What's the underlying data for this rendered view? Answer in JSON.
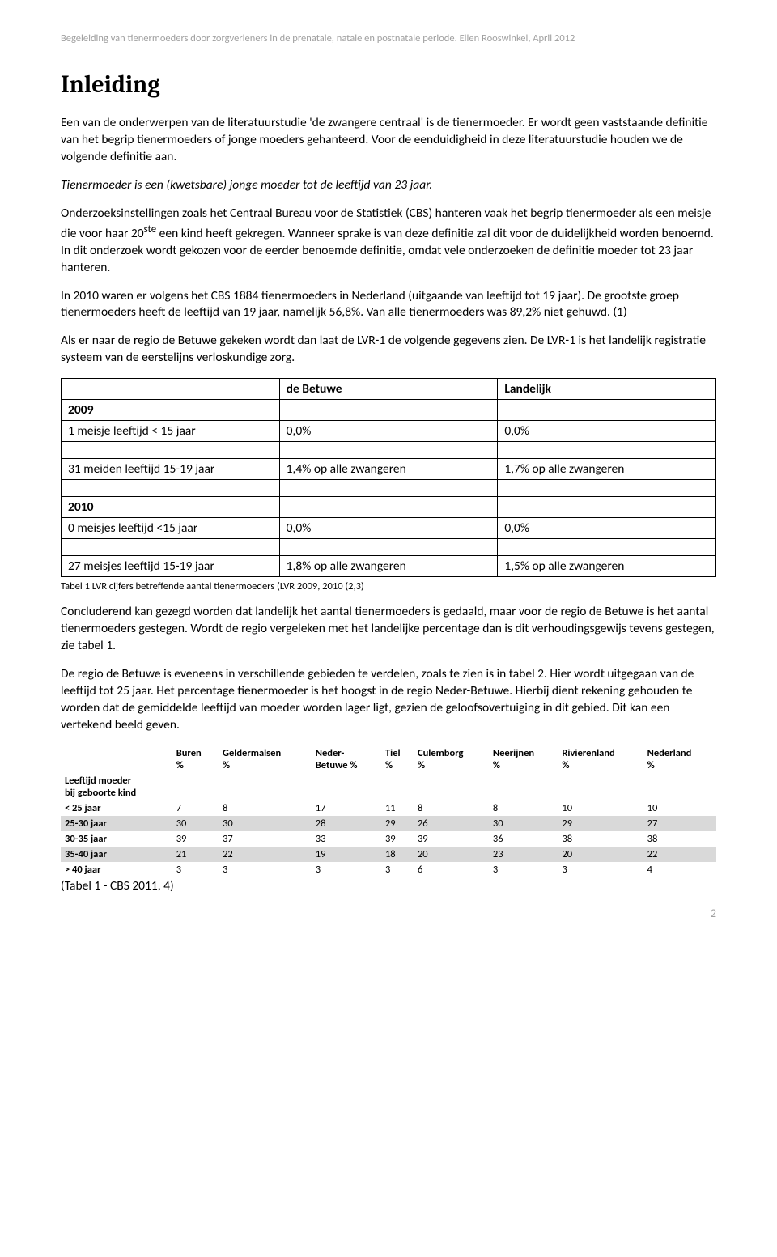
{
  "header": "Begeleiding van tienermoeders door zorgverleners in de prenatale, natale en postnatale periode. Ellen Rooswinkel, April 2012",
  "title": "Inleiding",
  "p1": "Een van de onderwerpen van de literatuurstudie 'de zwangere centraal' is de tienermoeder. Er wordt geen vaststaande definitie van het begrip tienermoeders of jonge moeders gehanteerd. Voor de eenduidigheid in deze literatuurstudie houden we de volgende definitie aan.",
  "p2": "Tienermoeder is een (kwetsbare) jonge moeder tot de leeftijd van 23 jaar.",
  "p3a": "Onderzoeksinstellingen zoals het Centraal Bureau voor de Statistiek (CBS) hanteren vaak het begrip tienermoeder als een meisje die voor haar 20",
  "p3sup": "ste",
  "p3b": " een kind heeft gekregen. Wanneer sprake is van deze definitie zal dit voor de duidelijkheid worden benoemd. In dit onderzoek wordt gekozen voor de eerder benoemde definitie, omdat vele onderzoeken de definitie moeder tot 23 jaar hanteren.",
  "p4": "In 2010 waren er volgens het CBS 1884 tienermoeders in Nederland (uitgaande van leeftijd tot 19 jaar). De grootste groep tienermoeders heeft de leeftijd van 19 jaar, namelijk 56,8%. Van alle tienermoeders was 89,2% niet gehuwd. (1)",
  "p5": "Als er naar de regio de Betuwe gekeken wordt dan laat de LVR-1 de volgende gegevens zien. De LVR-1 is het landelijk registratie systeem van de eerstelijns verloskundige zorg.",
  "table1": {
    "head_col2": "de Betuwe",
    "head_col3": "Landelijk",
    "y2009": "2009",
    "r1c1": "1 meisje leeftijd < 15 jaar",
    "r1c2": "0,0%",
    "r1c3": "0,0%",
    "r2c1": "31 meiden leeftijd 15-19 jaar",
    "r2c2": "1,4% op alle zwangeren",
    "r2c3": "1,7% op alle zwangeren",
    "y2010": "2010",
    "r3c1": "0 meisjes leeftijd <15 jaar",
    "r3c2": "0,0%",
    "r3c3": "0,0%",
    "r4c1": "27 meisjes leeftijd 15-19 jaar",
    "r4c2": "1,8% op alle zwangeren",
    "r4c3": "1,5% op alle zwangeren"
  },
  "table1_caption": "Tabel 1 LVR cijfers betreffende aantal tienermoeders (LVR 2009, 2010 (2,3)",
  "p6": "Concluderend kan gezegd worden dat landelijk het aantal tienermoeders is gedaald, maar voor de regio de Betuwe is het aantal tienermoeders gestegen. Wordt de regio vergeleken met het landelijke percentage dan is dit verhoudingsgewijs tevens gestegen, zie tabel 1.",
  "p7": "De regio de Betuwe is eveneens in verschillende gebieden te verdelen, zoals te zien is in tabel 2. Hier wordt uitgegaan van de leeftijd tot 25 jaar. Het percentage tienermoeder is het hoogst in de regio Neder-Betuwe. Hierbij dient rekening gehouden te worden dat de gemiddelde leeftijd van moeder worden lager ligt, gezien de geloofsovertuiging in dit gebied. Dit kan een vertekend beeld geven.",
  "table2": {
    "head": {
      "c0": "",
      "c1a": "Buren",
      "c1b": "%",
      "c2a": "Geldermalsen",
      "c2b": "%",
      "c3a": "Neder-",
      "c3b": "Betuwe %",
      "c4a": "Tiel",
      "c4b": "%",
      "c5a": "Culemborg",
      "c5b": "%",
      "c6a": "Neerijnen",
      "c6b": "%",
      "c7a": "Rivierenland",
      "c7b": "%",
      "c8a": "Nederland",
      "c8b": "%"
    },
    "rowlabel1": "Leeftijd moeder",
    "rowlabel2": "bij geboorte kind",
    "rows": [
      {
        "label": "< 25 jaar",
        "v": [
          "7",
          "8",
          "17",
          "11",
          "8",
          "8",
          "10",
          "10"
        ],
        "shaded": false
      },
      {
        "label": "25-30 jaar",
        "v": [
          "30",
          "30",
          "28",
          "29",
          "26",
          "30",
          "29",
          "27"
        ],
        "shaded": true
      },
      {
        "label": "30-35 jaar",
        "v": [
          "39",
          "37",
          "33",
          "39",
          "39",
          "36",
          "38",
          "38"
        ],
        "shaded": false
      },
      {
        "label": "35-40 jaar",
        "v": [
          "21",
          "22",
          "19",
          "18",
          "20",
          "23",
          "20",
          "22"
        ],
        "shaded": true
      },
      {
        "label": "> 40 jaar",
        "v": [
          "3",
          "3",
          "3",
          "3",
          "6",
          "3",
          "3",
          "4"
        ],
        "shaded": false
      }
    ]
  },
  "table2_source": "(Tabel 1 - CBS 2011, 4)",
  "page_no": "2"
}
